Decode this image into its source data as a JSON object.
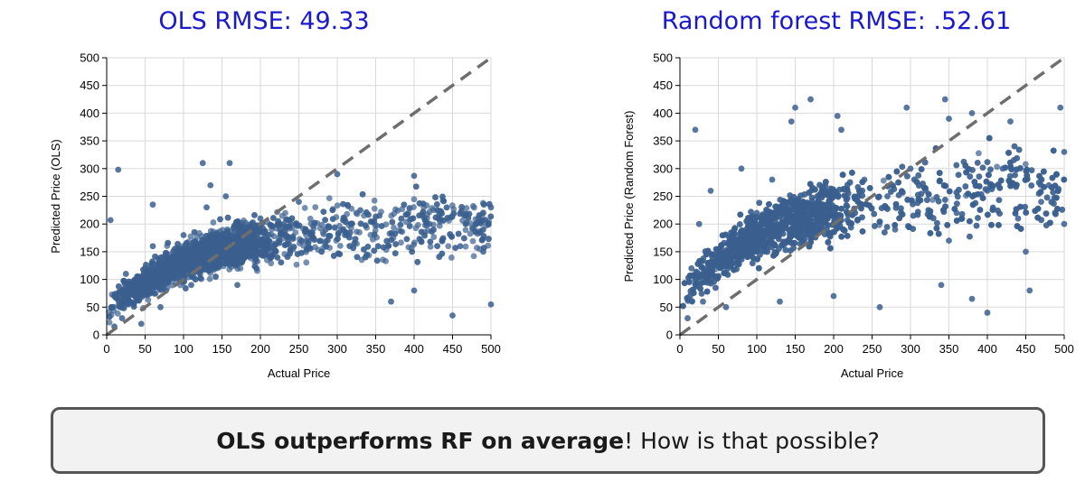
{
  "colors": {
    "title": "#1a1acc",
    "points": "#3a5f8f",
    "diagonal": "#6e6e6e",
    "grid": "#d9d9d9"
  },
  "chart_data": [
    {
      "type": "scatter",
      "title": "OLS RMSE: 49.33",
      "xlabel": "Actual Price",
      "ylabel": "Predicted Price (OLS)",
      "xlim": [
        0,
        500
      ],
      "ylim": [
        0,
        500
      ],
      "xticks": [
        0,
        50,
        100,
        150,
        200,
        250,
        300,
        350,
        400,
        450,
        500
      ],
      "yticks": [
        0,
        50,
        100,
        150,
        200,
        250,
        300,
        350,
        400,
        450,
        500
      ],
      "grid": true,
      "reference_line": "y = x (dashed)",
      "series": [
        {
          "values": [
            [
              15,
              298
            ],
            [
              5,
              207
            ],
            [
              60,
              235
            ],
            [
              135,
              270
            ],
            [
              125,
              310
            ],
            [
              160,
              310
            ],
            [
              300,
              290
            ],
            [
              400,
              287
            ],
            [
              450,
              35
            ],
            [
              500,
              230
            ],
            [
              480,
              200
            ],
            [
              430,
              225
            ],
            [
              355,
              215
            ],
            [
              250,
              240
            ],
            [
              200,
              210
            ],
            [
              100,
              180
            ],
            [
              50,
              120
            ],
            [
              30,
              60
            ],
            [
              20,
              30
            ],
            [
              80,
              100
            ],
            [
              150,
              140
            ],
            [
              180,
              160
            ],
            [
              220,
              150
            ],
            [
              260,
              170
            ],
            [
              310,
              180
            ],
            [
              370,
              60
            ],
            [
              400,
              80
            ],
            [
              420,
              200
            ],
            [
              460,
              160
            ],
            [
              490,
              150
            ],
            [
              500,
              55
            ],
            [
              330,
              225
            ],
            [
              285,
              190
            ],
            [
              240,
              200
            ],
            [
              110,
              90
            ],
            [
              70,
              50
            ],
            [
              40,
              90
            ],
            [
              90,
              140
            ],
            [
              170,
              90
            ],
            [
              130,
              230
            ],
            [
              155,
              250
            ],
            [
              195,
              120
            ],
            [
              60,
              160
            ],
            [
              25,
              110
            ],
            [
              45,
              20
            ],
            [
              10,
              15
            ]
          ]
        }
      ]
    },
    {
      "type": "scatter",
      "title": "Random forest RMSE: .52.61",
      "xlabel": "Actual Price",
      "ylabel": "Predicted Price (Random Forest)",
      "xlim": [
        0,
        500
      ],
      "ylim": [
        0,
        500
      ],
      "xticks": [
        0,
        50,
        100,
        150,
        200,
        250,
        300,
        350,
        400,
        450,
        500
      ],
      "yticks": [
        0,
        50,
        100,
        150,
        200,
        250,
        300,
        350,
        400,
        450,
        500
      ],
      "grid": true,
      "reference_line": "y = x (dashed)",
      "series": [
        {
          "values": [
            [
              20,
              370
            ],
            [
              145,
              385
            ],
            [
              170,
              425
            ],
            [
              150,
              410
            ],
            [
              205,
              395
            ],
            [
              210,
              370
            ],
            [
              295,
              410
            ],
            [
              345,
              425
            ],
            [
              350,
              390
            ],
            [
              380,
              400
            ],
            [
              430,
              385
            ],
            [
              495,
              410
            ],
            [
              500,
              330
            ],
            [
              480,
              270
            ],
            [
              450,
              150
            ],
            [
              455,
              80
            ],
            [
              400,
              40
            ],
            [
              380,
              65
            ],
            [
              340,
              90
            ],
            [
              260,
              50
            ],
            [
              200,
              70
            ],
            [
              130,
              60
            ],
            [
              60,
              50
            ],
            [
              30,
              60
            ],
            [
              10,
              30
            ],
            [
              15,
              120
            ],
            [
              25,
              200
            ],
            [
              40,
              260
            ],
            [
              80,
              300
            ],
            [
              100,
              220
            ],
            [
              120,
              280
            ],
            [
              160,
              240
            ],
            [
              200,
              260
            ],
            [
              240,
              280
            ],
            [
              270,
              250
            ],
            [
              300,
              300
            ],
            [
              320,
              260
            ],
            [
              360,
              220
            ],
            [
              400,
              260
            ],
            [
              420,
              300
            ],
            [
              470,
              240
            ],
            [
              500,
              200
            ],
            [
              490,
              290
            ],
            [
              440,
              210
            ],
            [
              350,
              170
            ],
            [
              280,
              190
            ]
          ]
        }
      ]
    }
  ],
  "callout": {
    "bold_text": "OLS outperforms RF on average",
    "rest_text": "! How is that possible?"
  }
}
